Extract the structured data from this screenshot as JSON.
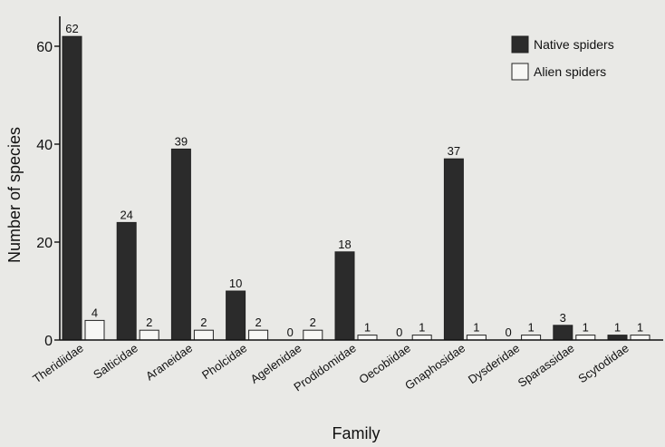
{
  "chart_data": {
    "type": "bar",
    "title": "",
    "xlabel": "Family",
    "ylabel": "Number of species",
    "ylim": [
      0,
      65
    ],
    "yticks": [
      0,
      20,
      40,
      60
    ],
    "grid": false,
    "legend_position": "top-right",
    "categories": [
      "Theridiidae",
      "Salticidae",
      "Araneidae",
      "Pholcidae",
      "Agelenidae",
      "Prodidomidae",
      "Oecobiidae",
      "Gnaphosidae",
      "Dysderidae",
      "Sparassidae",
      "Scytodidae"
    ],
    "series": [
      {
        "name": "Native spiders",
        "color": "#2b2b2b",
        "values": [
          62,
          24,
          39,
          10,
          0,
          18,
          0,
          37,
          0,
          3,
          1
        ]
      },
      {
        "name": "Alien spiders",
        "color": "#f7f7f5",
        "values": [
          4,
          2,
          2,
          2,
          2,
          1,
          1,
          1,
          1,
          1,
          1
        ]
      }
    ]
  }
}
